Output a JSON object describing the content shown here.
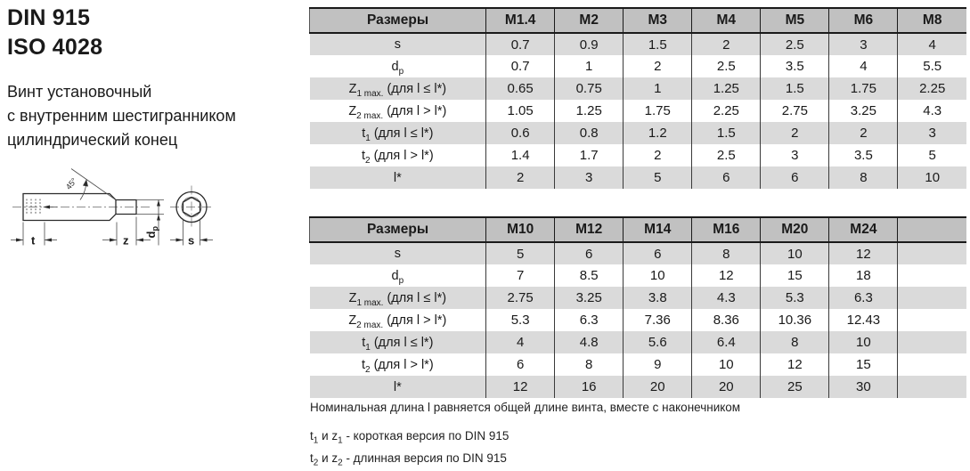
{
  "colors": {
    "header_bg": "#c1c1c1",
    "row_alt_bg": "#dadada",
    "table_border": "#1a1a1a",
    "text": "#1a1a1a",
    "drawing_line": "#2b2b2b"
  },
  "header": {
    "standard_1": "DIN 915",
    "standard_2": "ISO 4028",
    "subtitle_lines": [
      "Винт установочный",
      "с внутренним шестигранником",
      "цилиндрический конец"
    ]
  },
  "drawing": {
    "labels": {
      "t": "t",
      "z": "z",
      "s": "s",
      "angle": "45°",
      "dp_base": "d",
      "dp_sub": "p"
    }
  },
  "tables": [
    {
      "header_label": "Размеры",
      "columns": [
        "M1.4",
        "M2",
        "M3",
        "M4",
        "M5",
        "M6",
        "M8"
      ],
      "trailing_empty_column": false,
      "rows": [
        {
          "label_parts": [
            {
              "t": "s"
            }
          ],
          "values": [
            "0.7",
            "0.9",
            "1.5",
            "2",
            "2.5",
            "3",
            "4"
          ]
        },
        {
          "label_parts": [
            {
              "t": "d"
            },
            {
              "t": "p",
              "sub": true
            }
          ],
          "values": [
            "0.7",
            "1",
            "2",
            "2.5",
            "3.5",
            "4",
            "5.5"
          ]
        },
        {
          "label_parts": [
            {
              "t": "Z"
            },
            {
              "t": "1 max.",
              "sub": true
            },
            {
              "t": " (для l ≤ l*)"
            }
          ],
          "values": [
            "0.65",
            "0.75",
            "1",
            "1.25",
            "1.5",
            "1.75",
            "2.25"
          ]
        },
        {
          "label_parts": [
            {
              "t": "Z"
            },
            {
              "t": "2 max.",
              "sub": true
            },
            {
              "t": " (для l > l*)"
            }
          ],
          "values": [
            "1.05",
            "1.25",
            "1.75",
            "2.25",
            "2.75",
            "3.25",
            "4.3"
          ]
        },
        {
          "label_parts": [
            {
              "t": "t"
            },
            {
              "t": "1",
              "sub": true
            },
            {
              "t": " (для l ≤ l*)"
            }
          ],
          "values": [
            "0.6",
            "0.8",
            "1.2",
            "1.5",
            "2",
            "2",
            "3"
          ]
        },
        {
          "label_parts": [
            {
              "t": "t"
            },
            {
              "t": "2",
              "sub": true
            },
            {
              "t": " (для l > l*)"
            }
          ],
          "values": [
            "1.4",
            "1.7",
            "2",
            "2.5",
            "3",
            "3.5",
            "5"
          ]
        },
        {
          "label_parts": [
            {
              "t": "l*"
            }
          ],
          "values": [
            "2",
            "3",
            "5",
            "6",
            "6",
            "8",
            "10"
          ]
        }
      ]
    },
    {
      "header_label": "Размеры",
      "columns": [
        "M10",
        "M12",
        "M14",
        "M16",
        "M20",
        "M24"
      ],
      "trailing_empty_column": true,
      "rows": [
        {
          "label_parts": [
            {
              "t": "s"
            }
          ],
          "values": [
            "5",
            "6",
            "6",
            "8",
            "10",
            "12"
          ]
        },
        {
          "label_parts": [
            {
              "t": "d"
            },
            {
              "t": "p",
              "sub": true
            }
          ],
          "values": [
            "7",
            "8.5",
            "10",
            "12",
            "15",
            "18"
          ]
        },
        {
          "label_parts": [
            {
              "t": "Z"
            },
            {
              "t": "1 max.",
              "sub": true
            },
            {
              "t": " (для l ≤ l*)"
            }
          ],
          "values": [
            "2.75",
            "3.25",
            "3.8",
            "4.3",
            "5.3",
            "6.3"
          ]
        },
        {
          "label_parts": [
            {
              "t": "Z"
            },
            {
              "t": "2 max.",
              "sub": true
            },
            {
              "t": " (для l > l*)"
            }
          ],
          "values": [
            "5.3",
            "6.3",
            "7.36",
            "8.36",
            "10.36",
            "12.43"
          ]
        },
        {
          "label_parts": [
            {
              "t": "t"
            },
            {
              "t": "1",
              "sub": true
            },
            {
              "t": " (для l ≤ l*)"
            }
          ],
          "values": [
            "4",
            "4.8",
            "5.6",
            "6.4",
            "8",
            "10"
          ]
        },
        {
          "label_parts": [
            {
              "t": "t"
            },
            {
              "t": "2",
              "sub": true
            },
            {
              "t": " (для l > l*)"
            }
          ],
          "values": [
            "6",
            "8",
            "9",
            "10",
            "12",
            "15"
          ]
        },
        {
          "label_parts": [
            {
              "t": "l*"
            }
          ],
          "values": [
            "12",
            "16",
            "20",
            "20",
            "25",
            "30"
          ]
        }
      ]
    }
  ],
  "notes": {
    "length_note": "Номинальная длина l равняется общей длине винта, вместе с наконечником",
    "footnotes": [
      {
        "parts": [
          {
            "t": "t"
          },
          {
            "t": "1",
            "sub": true
          },
          {
            "t": " и z"
          },
          {
            "t": "1",
            "sub": true
          },
          {
            "t": " - короткая версия по DIN 915"
          }
        ]
      },
      {
        "parts": [
          {
            "t": "t"
          },
          {
            "t": "2",
            "sub": true
          },
          {
            "t": " и z"
          },
          {
            "t": "2",
            "sub": true
          },
          {
            "t": " - длинная версия по DIN 915"
          }
        ]
      }
    ]
  }
}
